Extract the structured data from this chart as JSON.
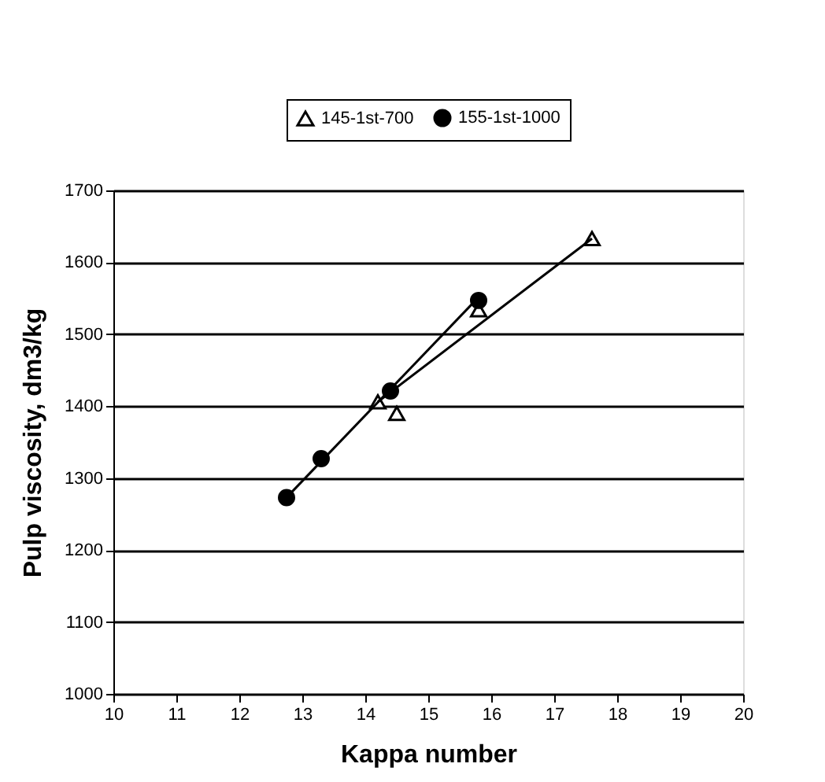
{
  "chart_data": {
    "type": "scatter",
    "xlabel": "Kappa number",
    "ylabel": "Pulp viscosity, dm3/kg",
    "xlim": [
      10,
      20
    ],
    "xticks": [
      10,
      11,
      12,
      13,
      14,
      15,
      16,
      17,
      18,
      19,
      20
    ],
    "ylim": [
      1000,
      1700
    ],
    "yticks": [
      1000,
      1100,
      1200,
      1300,
      1400,
      1500,
      1600,
      1700
    ],
    "grid": "y",
    "legend": "top",
    "series": [
      {
        "name": "145-1st-700",
        "color": "#000000",
        "marker": "triangle",
        "x": [
          14.2,
          14.5,
          15.8,
          17.6
        ],
        "values": [
          1406,
          1390,
          1534,
          1633
        ]
      },
      {
        "name": "155-1st-1000",
        "color": "#000000",
        "marker": "circle",
        "x": [
          12.75,
          13.3,
          14.4,
          15.8
        ],
        "values": [
          1273,
          1327,
          1421,
          1547
        ]
      },
      {
        "type": "line",
        "color": "#000000",
        "marker": "none",
        "x": [
          14.2,
          17.6
        ],
        "values": [
          1406,
          1633
        ]
      },
      {
        "type": "line",
        "color": "#000000",
        "marker": "none",
        "x": [
          12.75,
          15.75
        ],
        "values": [
          1273,
          1547
        ]
      }
    ]
  }
}
